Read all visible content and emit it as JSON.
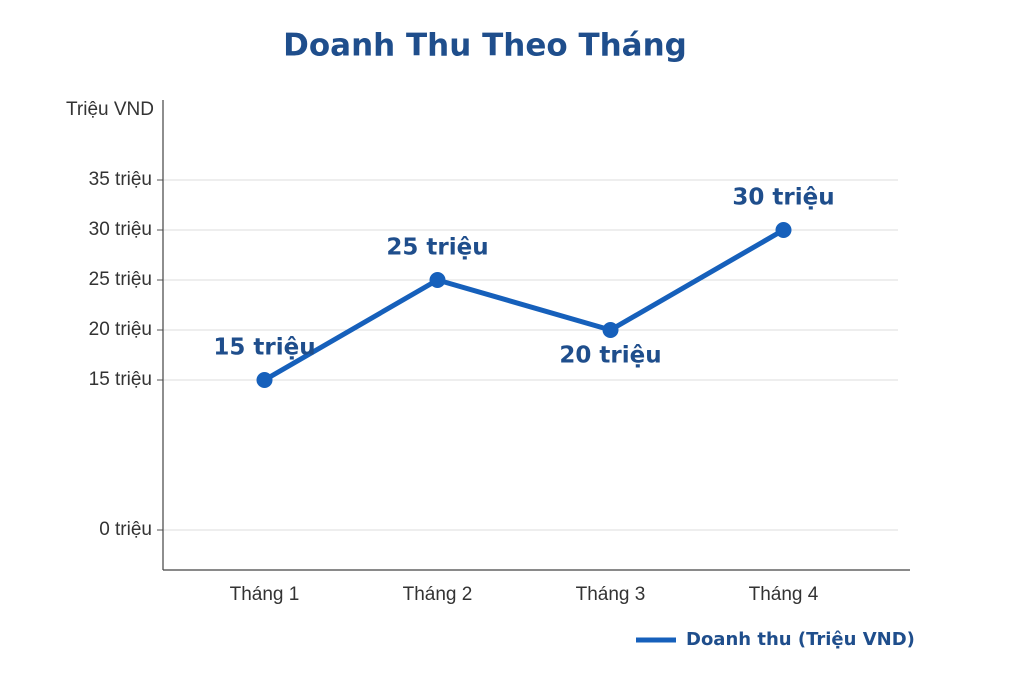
{
  "chart_data": {
    "type": "line",
    "title": "Doanh Thu Theo Tháng",
    "y_label": "Triệu VND",
    "categories": [
      "Tháng 1",
      "Tháng 2",
      "Tháng 3",
      "Tháng 4"
    ],
    "series": [
      {
        "name": "Doanh thu (Triệu VND)",
        "color": "#1660bb",
        "values": [
          15,
          25,
          20,
          30
        ],
        "value_labels": [
          "15 triệu",
          "25 triệu",
          "20 triệu",
          "30 triệu"
        ]
      }
    ],
    "ylim": [
      -4,
      43
    ],
    "yticks": [
      {
        "value": 0,
        "label": "0 triệu"
      },
      {
        "value": 15,
        "label": "15 triệu"
      },
      {
        "value": 20,
        "label": "20 triệu"
      },
      {
        "value": 25,
        "label": "25 triệu"
      },
      {
        "value": 30,
        "label": "30 triệu"
      },
      {
        "value": 35,
        "label": "35 triệu"
      }
    ],
    "grid": true,
    "legend": "bottom-right"
  }
}
